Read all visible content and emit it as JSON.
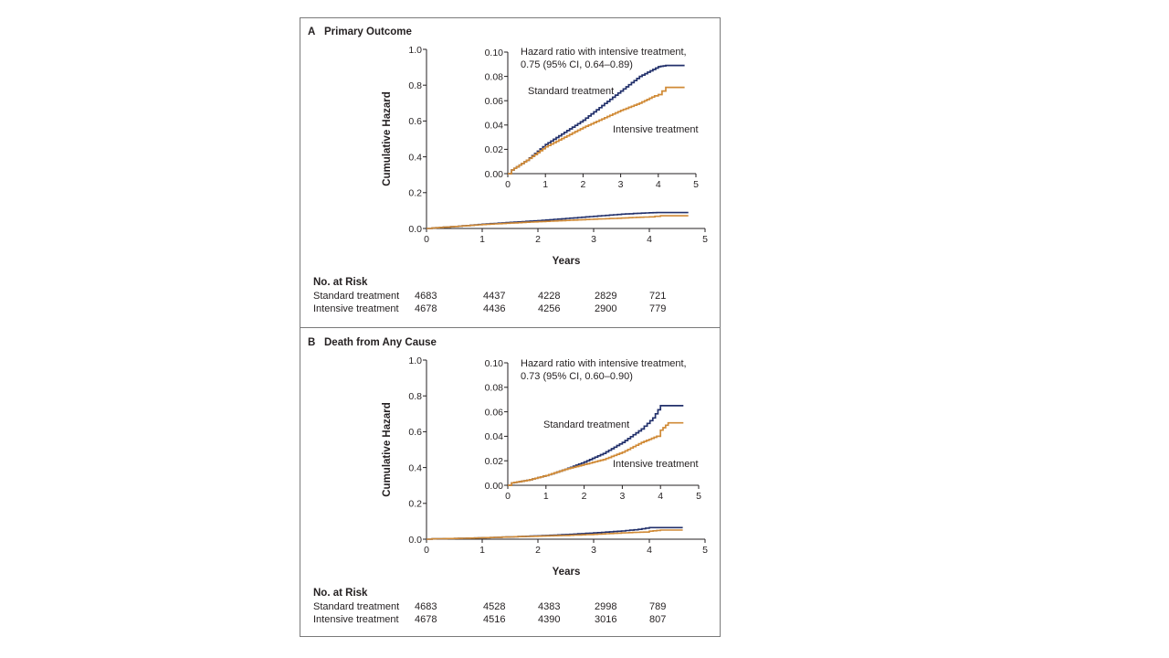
{
  "panels": [
    {
      "letter": "A",
      "title": "Primary Outcome",
      "ylabel": "Cumulative Hazard",
      "xlabel": "Years",
      "main_y_ticks": [
        "0.0",
        "0.2",
        "0.4",
        "0.6",
        "0.8",
        "1.0"
      ],
      "main_x_ticks": [
        "0",
        "1",
        "2",
        "3",
        "4",
        "5"
      ],
      "inset_y_ticks": [
        "0.00",
        "0.02",
        "0.04",
        "0.06",
        "0.08",
        "0.10"
      ],
      "inset_x_ticks": [
        "0",
        "1",
        "2",
        "3",
        "4",
        "5"
      ],
      "hazard_ratio_line1": "Hazard ratio with intensive treatment,",
      "hazard_ratio_line2": "0.75 (95% CI, 0.64–0.89)",
      "standard_label": "Standard treatment",
      "intensive_label": "Intensive treatment",
      "risk_header": "No. at Risk",
      "risk_rows": [
        {
          "label": "Standard treatment",
          "values": [
            "4683",
            "4437",
            "4228",
            "2829",
            "721"
          ]
        },
        {
          "label": "Intensive treatment",
          "values": [
            "4678",
            "4436",
            "4256",
            "2900",
            "779"
          ]
        }
      ]
    },
    {
      "letter": "B",
      "title": "Death from Any Cause",
      "ylabel": "Cumulative Hazard",
      "xlabel": "Years",
      "main_y_ticks": [
        "0.0",
        "0.2",
        "0.4",
        "0.6",
        "0.8",
        "1.0"
      ],
      "main_x_ticks": [
        "0",
        "1",
        "2",
        "3",
        "4",
        "5"
      ],
      "inset_y_ticks": [
        "0.00",
        "0.02",
        "0.04",
        "0.06",
        "0.08",
        "0.10"
      ],
      "inset_x_ticks": [
        "0",
        "1",
        "2",
        "3",
        "4",
        "5"
      ],
      "hazard_ratio_line1": "Hazard ratio with intensive treatment,",
      "hazard_ratio_line2": "0.73 (95% CI, 0.60–0.90)",
      "standard_label": "Standard treatment",
      "intensive_label": "Intensive treatment",
      "risk_header": "No. at Risk",
      "risk_rows": [
        {
          "label": "Standard treatment",
          "values": [
            "4683",
            "4528",
            "4383",
            "2998",
            "789"
          ]
        },
        {
          "label": "Intensive treatment",
          "values": [
            "4678",
            "4516",
            "4390",
            "3016",
            "807"
          ]
        }
      ]
    }
  ],
  "colors": {
    "standard": "#22306b",
    "intensive": "#d08a36",
    "axis": "#231f20",
    "frame": "#7a7a7a"
  },
  "chart_data": [
    {
      "type": "line",
      "panel": "A",
      "title": "Primary Outcome",
      "xlabel": "Years",
      "ylabel": "Cumulative Hazard",
      "xlim": [
        0,
        5
      ],
      "ylim": [
        0,
        1.0
      ],
      "inset": {
        "xlim": [
          0,
          5
        ],
        "ylim": [
          0,
          0.1
        ]
      },
      "legend": "direct labels on inset",
      "series": [
        {
          "name": "Standard treatment",
          "color": "#22306b",
          "x": [
            0,
            0.1,
            0.5,
            1.0,
            1.5,
            2.0,
            2.5,
            3.0,
            3.5,
            4.0,
            4.2,
            4.7
          ],
          "y": [
            0,
            0.003,
            0.011,
            0.024,
            0.034,
            0.044,
            0.056,
            0.068,
            0.08,
            0.088,
            0.089,
            0.089
          ]
        },
        {
          "name": "Intensive treatment",
          "color": "#d08a36",
          "x": [
            0,
            0.1,
            0.5,
            1.0,
            1.5,
            2.0,
            2.5,
            3.0,
            3.5,
            3.9,
            4.0,
            4.1,
            4.2,
            4.7
          ],
          "y": [
            0,
            0.003,
            0.011,
            0.022,
            0.03,
            0.038,
            0.045,
            0.052,
            0.058,
            0.064,
            0.065,
            0.068,
            0.071,
            0.071
          ]
        }
      ]
    },
    {
      "type": "line",
      "panel": "B",
      "title": "Death from Any Cause",
      "xlabel": "Years",
      "ylabel": "Cumulative Hazard",
      "xlim": [
        0,
        5
      ],
      "ylim": [
        0,
        1.0
      ],
      "inset": {
        "xlim": [
          0,
          5
        ],
        "ylim": [
          0,
          0.1
        ]
      },
      "legend": "direct labels on inset",
      "series": [
        {
          "name": "Standard treatment",
          "color": "#22306b",
          "x": [
            0,
            0.1,
            0.5,
            1.0,
            1.5,
            2.0,
            2.5,
            3.0,
            3.5,
            3.8,
            4.0,
            4.6
          ],
          "y": [
            0,
            0.002,
            0.004,
            0.008,
            0.013,
            0.019,
            0.026,
            0.035,
            0.046,
            0.055,
            0.065,
            0.065
          ]
        },
        {
          "name": "Intensive treatment",
          "color": "#d08a36",
          "x": [
            0,
            0.1,
            0.5,
            1.0,
            1.5,
            2.0,
            2.5,
            3.0,
            3.5,
            3.9,
            4.0,
            4.2,
            4.6
          ],
          "y": [
            0,
            0.002,
            0.004,
            0.008,
            0.013,
            0.017,
            0.021,
            0.027,
            0.035,
            0.04,
            0.045,
            0.051,
            0.051
          ]
        }
      ]
    }
  ]
}
